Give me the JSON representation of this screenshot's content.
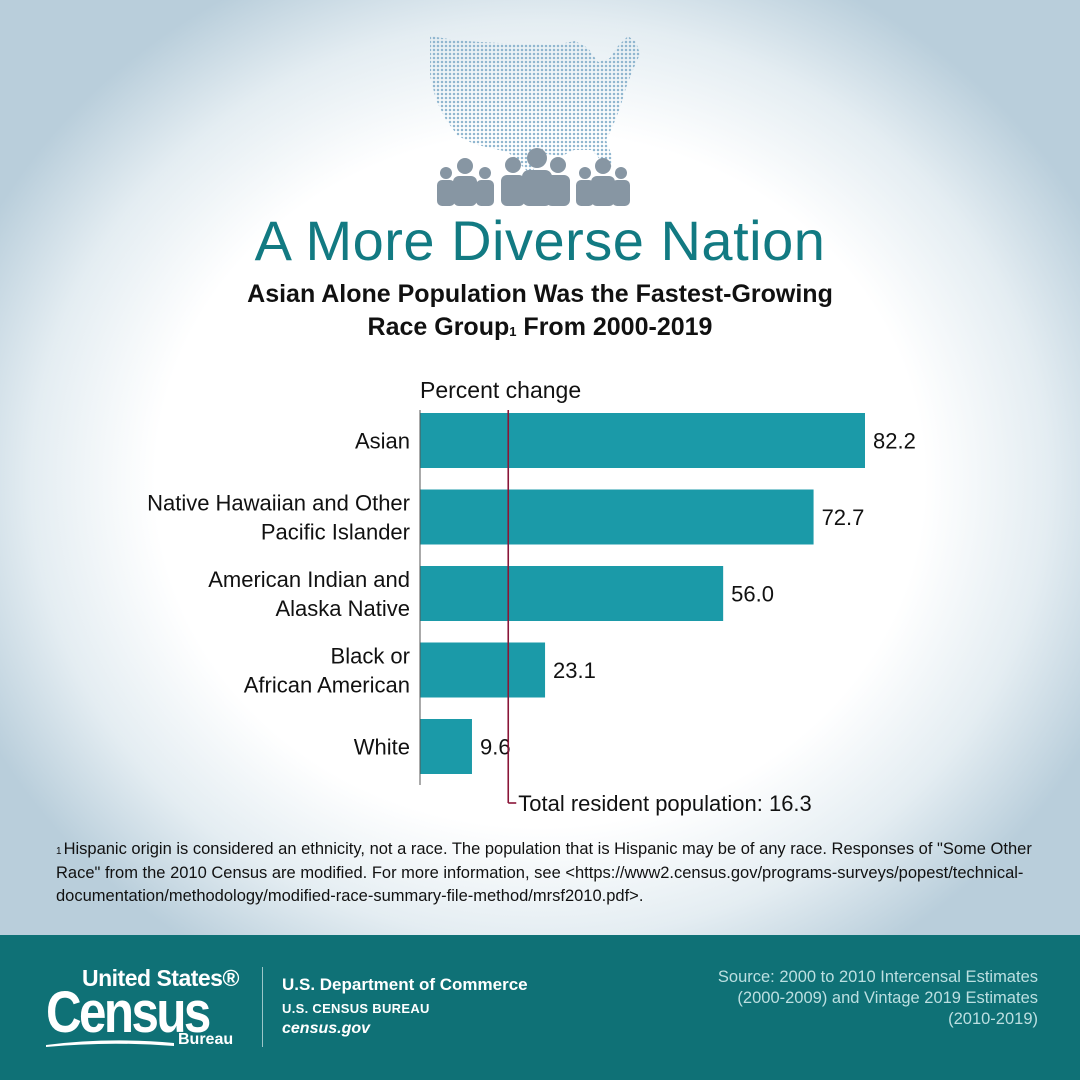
{
  "title": "A More Diverse Nation",
  "subtitle_line1": "Asian Alone Population Was the Fastest-Growing",
  "subtitle_line2": "Race Group",
  "subtitle_sup": "1",
  "subtitle_line2_end": " From 2000-2019",
  "chart_data": {
    "type": "bar",
    "orientation": "horizontal",
    "axis_label": "Percent change",
    "categories": [
      [
        "Asian"
      ],
      [
        "Native Hawaiian and Other",
        "Pacific Islander"
      ],
      [
        "American Indian and",
        "Alaska Native"
      ],
      [
        "Black or",
        "African American"
      ],
      [
        "White"
      ]
    ],
    "values": [
      82.2,
      72.7,
      56.0,
      23.1,
      9.6
    ],
    "value_labels": [
      "82.2",
      "72.7",
      "56.0",
      "23.1",
      "9.6"
    ],
    "reference": {
      "value": 16.3,
      "label": "Total resident population: 16.3"
    },
    "colors": {
      "bar": "#1b9aa8",
      "reference": "#8a1538",
      "axis": "#555555"
    }
  },
  "footnote": {
    "marker": "1",
    "text": "Hispanic origin is considered an ethnicity, not a race. The population that is Hispanic may be of any race. Responses of \"Some Other Race\" from the 2010 Census are modified. For more information, see <https://www2.census.gov/programs-surveys/popest/technical-documentation/methodology/modified-race-summary-file-method/mrsf2010.pdf>."
  },
  "footer": {
    "logo_line1": "United States®",
    "logo_line2": "Census",
    "logo_line3": "Bureau",
    "dept_name": "U.S. Department of Commerce",
    "dept_bureau": "U.S. CENSUS BUREAU",
    "dept_url": "census.gov",
    "source": "Source: 2000 to 2010 Intercensal Estimates (2000-2009) and Vintage 2019 Estimates (2010-2019)"
  },
  "colors": {
    "title": "#127a82",
    "footer_bg": "#0f7176",
    "map": "#8fb6cf",
    "people": "#8796a3"
  }
}
